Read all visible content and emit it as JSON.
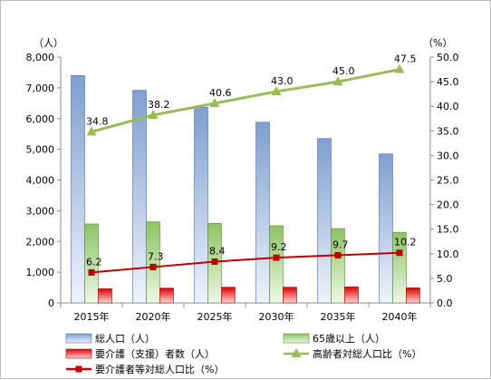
{
  "chart_data": {
    "type": "bar",
    "categories": [
      "2015年",
      "2020年",
      "2025年",
      "2030年",
      "2035年",
      "2040年"
    ],
    "left_axis": {
      "unit": "（人）",
      "ylim": [
        0,
        8000
      ],
      "ticks": [
        "0",
        "1,000",
        "2,000",
        "3,000",
        "4,000",
        "5,000",
        "6,000",
        "7,000",
        "8,000"
      ]
    },
    "right_axis": {
      "unit": "（%）",
      "ylim": [
        0,
        50
      ],
      "ticks": [
        "0.0",
        "5.0",
        "10.0",
        "15.0",
        "20.0",
        "25.0",
        "30.0",
        "35.0",
        "40.0",
        "45.0",
        "50.0"
      ]
    },
    "series": [
      {
        "name": "総人口（人）",
        "kind": "bar",
        "axis": "left",
        "color": "#7f9fd0",
        "values": [
          7400,
          6920,
          6370,
          5880,
          5350,
          4850
        ]
      },
      {
        "name": "65歳以上（人）",
        "kind": "bar",
        "axis": "left",
        "color": "#8dc365",
        "values": [
          2570,
          2640,
          2590,
          2510,
          2420,
          2300
        ]
      },
      {
        "name": "要介護（支援）者数（人）",
        "kind": "bar",
        "axis": "left",
        "color": "#e00000",
        "values": [
          460,
          480,
          510,
          510,
          520,
          490
        ]
      },
      {
        "name": "高齢者対総人口比（%）",
        "kind": "line",
        "axis": "right",
        "color": "#9bbb59",
        "marker": "triangle",
        "values": [
          34.8,
          38.2,
          40.6,
          43.0,
          45.0,
          47.5
        ],
        "labels": [
          "34.8",
          "38.2",
          "40.6",
          "43.0",
          "45.0",
          "47.5"
        ]
      },
      {
        "name": "要介護者等対総人口比（%）",
        "kind": "line",
        "axis": "right",
        "color": "#c00000",
        "marker": "square",
        "values": [
          6.2,
          7.3,
          8.4,
          9.2,
          9.7,
          10.2
        ],
        "labels": [
          "6.2",
          "7.3",
          "8.4",
          "9.2",
          "9.7",
          "10.2"
        ]
      }
    ],
    "grid": false,
    "legend_position": "bottom"
  }
}
